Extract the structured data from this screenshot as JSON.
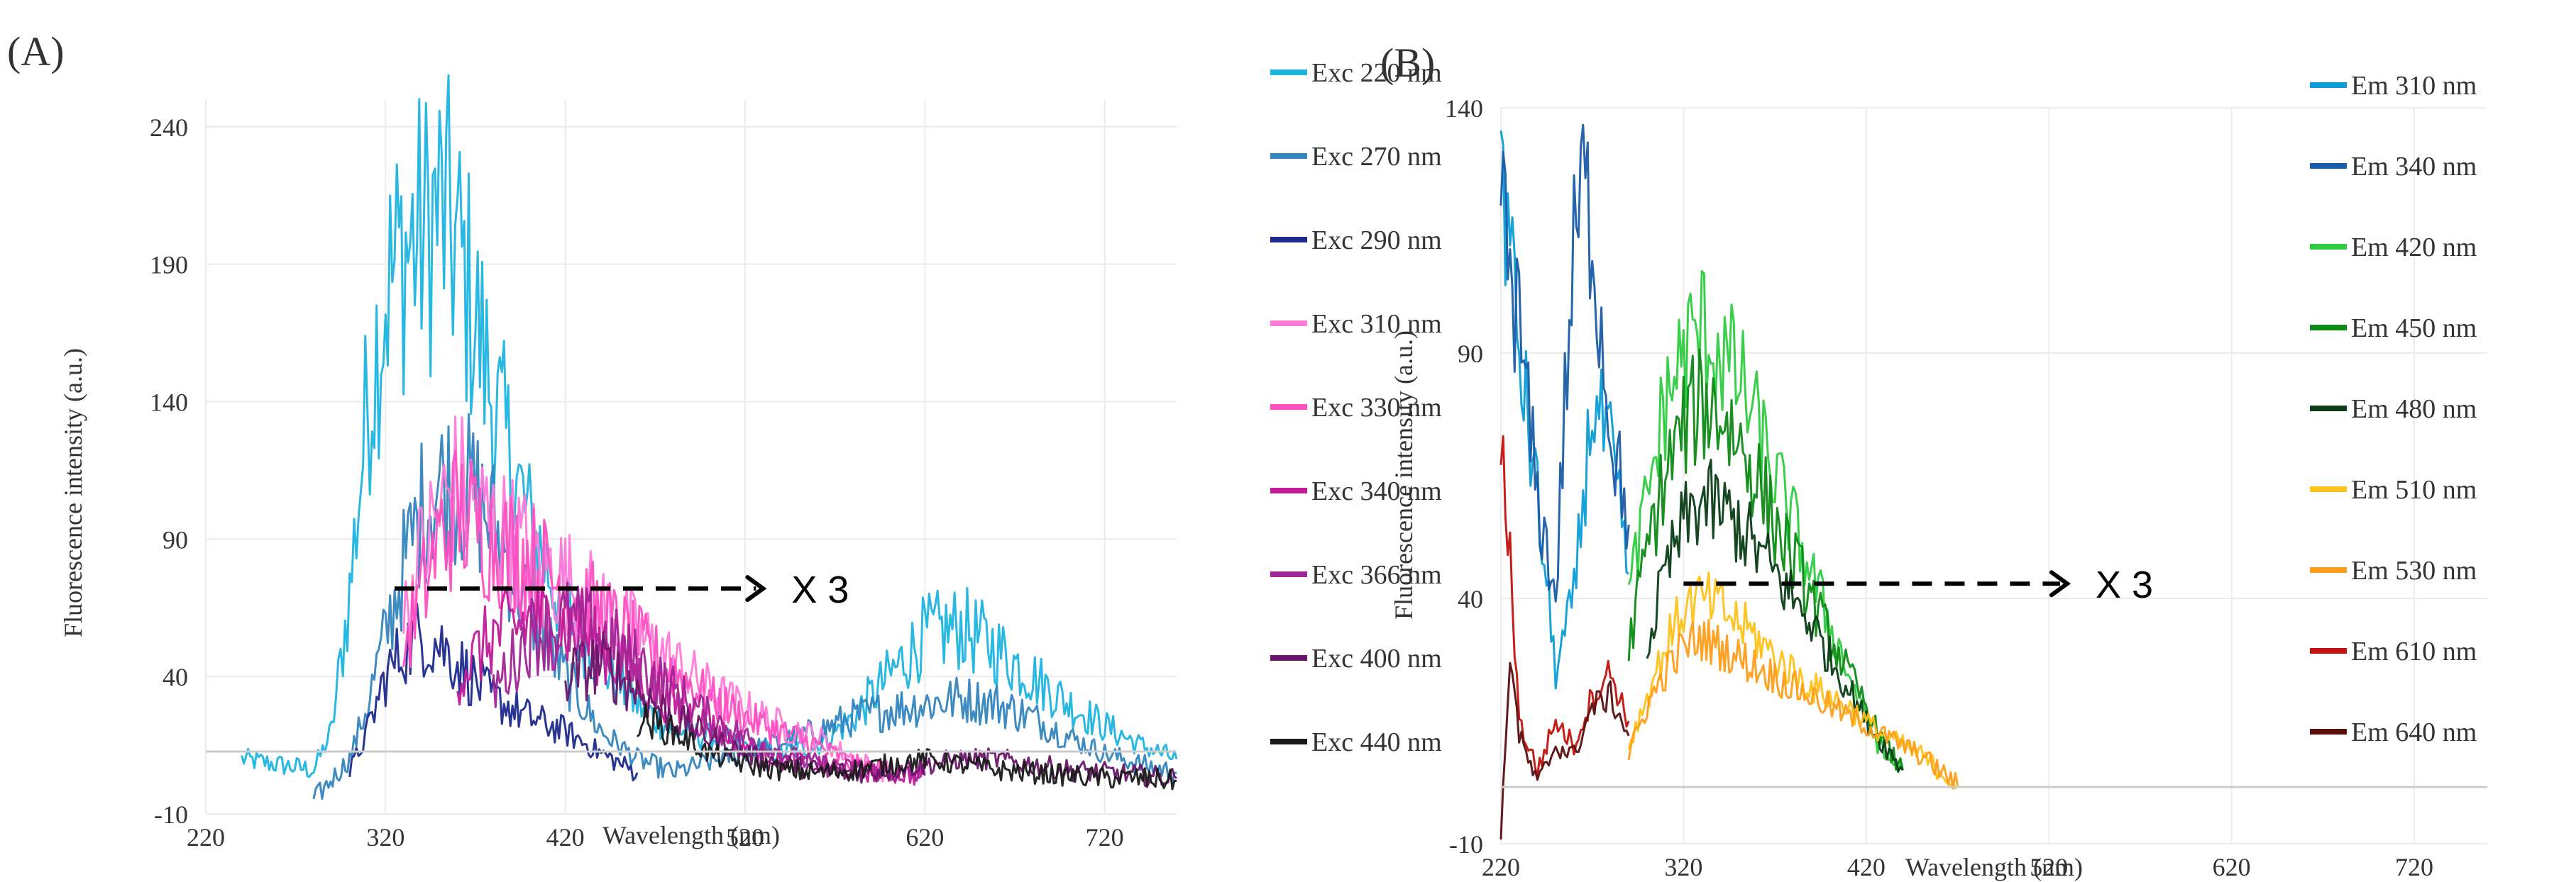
{
  "chart_data": [
    {
      "panel_label": "(A)",
      "type": "line",
      "xlabel": "Wavelength (nm)",
      "ylabel": "Fluorescence intensity (a.u.)",
      "xlim": [
        220,
        760
      ],
      "ylim": [
        -10,
        250
      ],
      "x_ticks": [
        "220",
        "320",
        "420",
        "520",
        "620",
        "720"
      ],
      "y_ticks": [
        "-10",
        "40",
        "90",
        "140",
        "190",
        "240"
      ],
      "annotation": {
        "text": "X 3",
        "arrow_from_x": 325,
        "arrow_to_x": 530,
        "arrow_y": 72
      },
      "series": [
        {
          "name": "Exc 220 nm",
          "color": "#1EB4E0",
          "x": [
            240,
            260,
            280,
            290,
            300,
            310,
            320,
            330,
            340,
            350,
            360,
            370,
            380,
            400,
            420,
            440,
            460,
            480,
            500,
            520,
            540,
            560,
            580,
            600,
            620,
            640,
            660,
            680,
            700,
            720,
            740,
            760
          ],
          "y": [
            10,
            8,
            6,
            20,
            70,
            140,
            180,
            195,
            200,
            210,
            195,
            170,
            140,
            95,
            65,
            45,
            30,
            20,
            18,
            15,
            12,
            15,
            25,
            40,
            55,
            58,
            50,
            40,
            30,
            22,
            15,
            10
          ]
        },
        {
          "name": "Exc 270 nm",
          "color": "#3485BF",
          "x": [
            280,
            300,
            310,
            320,
            330,
            340,
            350,
            360,
            370,
            380,
            390,
            400,
            420,
            440,
            460,
            480,
            560,
            580,
            600,
            620,
            640,
            660,
            680,
            700,
            720,
            740,
            760
          ],
          "y": [
            -5,
            10,
            30,
            55,
            80,
            100,
            110,
            110,
            105,
            95,
            80,
            65,
            40,
            20,
            10,
            5,
            20,
            25,
            28,
            30,
            32,
            30,
            25,
            18,
            12,
            8,
            5
          ]
        },
        {
          "name": "Exc 290 nm",
          "color": "#1E2A8C",
          "x": [
            300,
            310,
            320,
            330,
            340,
            350,
            360,
            370,
            380,
            400,
            420,
            440,
            460
          ],
          "y": [
            5,
            20,
            40,
            50,
            55,
            52,
            45,
            38,
            32,
            25,
            20,
            12,
            5
          ]
        },
        {
          "name": "Exc 310 nm",
          "color": "#FF7AD9",
          "x": [
            330,
            340,
            350,
            360,
            370,
            380,
            400,
            420,
            440,
            460,
            480,
            500,
            520,
            540,
            560,
            580,
            600
          ],
          "y": [
            60,
            85,
            100,
            110,
            100,
            95,
            85,
            75,
            65,
            55,
            45,
            35,
            28,
            22,
            18,
            10,
            5
          ]
        },
        {
          "name": "Exc 330 nm",
          "color": "#FF4FC2",
          "x": [
            330,
            340,
            350,
            360,
            370,
            380,
            400,
            420,
            440,
            460,
            480,
            500,
            520,
            540,
            560,
            580,
            600
          ],
          "y": [
            50,
            70,
            90,
            100,
            95,
            90,
            82,
            72,
            62,
            52,
            42,
            32,
            25,
            20,
            15,
            8,
            5
          ]
        },
        {
          "name": "Exc 340 nm",
          "color": "#C21A99",
          "x": [
            360,
            380,
            400,
            420,
            440,
            460,
            480,
            500,
            520,
            540,
            560,
            580,
            600,
            620
          ],
          "y": [
            40,
            55,
            60,
            58,
            50,
            40,
            30,
            22,
            15,
            10,
            8,
            6,
            5,
            4
          ]
        },
        {
          "name": "Exc 366 nm",
          "color": "#A12595",
          "x": [
            380,
            400,
            420,
            440,
            460,
            480,
            500,
            520,
            540,
            560,
            580,
            600,
            620
          ],
          "y": [
            35,
            55,
            60,
            55,
            45,
            35,
            25,
            18,
            12,
            8,
            6,
            5,
            4
          ]
        },
        {
          "name": "Exc 400 nm",
          "color": "#6A1767",
          "x": [
            420,
            440,
            460,
            480,
            500,
            520,
            540,
            560,
            580,
            600,
            620,
            640,
            660,
            680,
            700,
            720,
            740,
            760
          ],
          "y": [
            40,
            45,
            35,
            25,
            18,
            12,
            8,
            6,
            5,
            6,
            8,
            10,
            10,
            8,
            6,
            5,
            4,
            3
          ]
        },
        {
          "name": "Exc 440 nm",
          "color": "#1A1A1A",
          "x": [
            460,
            480,
            500,
            520,
            540,
            560,
            580,
            600,
            620,
            640,
            660,
            680,
            700,
            720,
            740,
            760
          ],
          "y": [
            25,
            20,
            12,
            8,
            6,
            5,
            6,
            8,
            10,
            8,
            6,
            5,
            4,
            3,
            3,
            2
          ]
        }
      ]
    },
    {
      "panel_label": "(B)",
      "type": "line",
      "xlabel": "Wavelength (nm)",
      "ylabel": "Fluorescence intensity (a.u.)",
      "xlim": [
        220,
        760
      ],
      "ylim": [
        -10,
        140
      ],
      "x_ticks": [
        "220",
        "320",
        "420",
        "520",
        "620",
        "720"
      ],
      "y_ticks": [
        "-10",
        "40",
        "90",
        "140"
      ],
      "annotation": {
        "text": "X 3",
        "arrow_from_x": 320,
        "arrow_to_x": 530,
        "arrow_y": 43
      },
      "series": [
        {
          "name": "Em 310 nm",
          "color": "#0D9DD6",
          "x": [
            220,
            225,
            230,
            240,
            250,
            260,
            270,
            280,
            290
          ],
          "y": [
            130,
            110,
            90,
            60,
            25,
            40,
            80,
            70,
            45
          ]
        },
        {
          "name": "Em 340 nm",
          "color": "#1A5CA6",
          "x": [
            220,
            230,
            240,
            250,
            255,
            260,
            265,
            270,
            275,
            280,
            290
          ],
          "y": [
            120,
            95,
            60,
            40,
            80,
            110,
            125,
            115,
            95,
            75,
            55
          ]
        },
        {
          "name": "Em 420 nm",
          "color": "#2ECC40",
          "x": [
            290,
            300,
            310,
            320,
            330,
            340,
            350,
            360,
            370,
            380,
            390,
            400,
            410,
            420,
            430,
            440
          ],
          "y": [
            40,
            60,
            80,
            90,
            95,
            90,
            85,
            75,
            65,
            55,
            45,
            35,
            25,
            15,
            8,
            5
          ]
        },
        {
          "name": "Em 450 nm",
          "color": "#0E8A16",
          "x": [
            290,
            300,
            310,
            320,
            330,
            340,
            350,
            360,
            370,
            380,
            390,
            400,
            410,
            420,
            430,
            440
          ],
          "y": [
            30,
            50,
            65,
            75,
            80,
            78,
            72,
            65,
            55,
            48,
            40,
            32,
            25,
            18,
            10,
            5
          ]
        },
        {
          "name": "Em 480 nm",
          "color": "#0B3D16",
          "x": [
            300,
            310,
            320,
            330,
            340,
            350,
            360,
            370,
            380,
            390,
            400,
            410,
            420,
            430,
            440
          ],
          "y": [
            30,
            45,
            55,
            60,
            58,
            55,
            50,
            45,
            40,
            35,
            28,
            22,
            15,
            10,
            5
          ]
        },
        {
          "name": "Em 510 nm",
          "color": "#FFC21A",
          "x": [
            290,
            300,
            310,
            320,
            330,
            340,
            350,
            360,
            370,
            380,
            390,
            400,
            410,
            420,
            430,
            440,
            450,
            460,
            470
          ],
          "y": [
            10,
            20,
            30,
            38,
            40,
            38,
            35,
            32,
            28,
            25,
            22,
            20,
            18,
            15,
            12,
            10,
            8,
            5,
            2
          ]
        },
        {
          "name": "Em 530 nm",
          "color": "#FF9E1A",
          "x": [
            290,
            300,
            310,
            320,
            330,
            340,
            350,
            360,
            370,
            380,
            390,
            400,
            410,
            420,
            430,
            440,
            450,
            460,
            470
          ],
          "y": [
            8,
            18,
            25,
            30,
            32,
            30,
            28,
            26,
            24,
            22,
            20,
            18,
            16,
            14,
            12,
            10,
            8,
            5,
            2
          ]
        },
        {
          "name": "Em 610 nm",
          "color": "#C0140F",
          "x": [
            220,
            225,
            230,
            240,
            250,
            260,
            270,
            280,
            290
          ],
          "y": [
            70,
            50,
            15,
            5,
            15,
            10,
            20,
            25,
            15
          ]
        },
        {
          "name": "Em 640 nm",
          "color": "#5A0F0F",
          "x": [
            220,
            225,
            230,
            240,
            250,
            260,
            270,
            280,
            290
          ],
          "y": [
            -10,
            30,
            12,
            2,
            10,
            8,
            18,
            20,
            12
          ]
        }
      ]
    }
  ]
}
